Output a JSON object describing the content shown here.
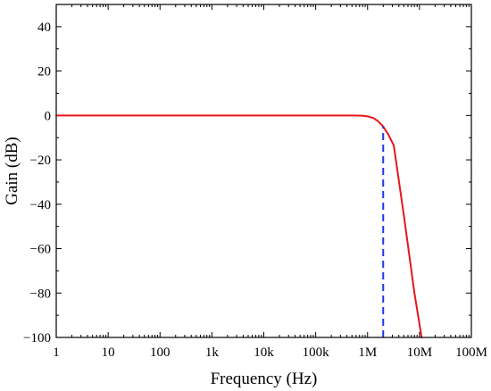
{
  "chart_data": {
    "type": "line",
    "xlabel": "Frequency (Hz)",
    "ylabel": "Gain (dB)",
    "x_scale": "log",
    "xlim": [
      1,
      100000000
    ],
    "ylim": [
      -100,
      50
    ],
    "x_ticks": [
      {
        "value": 1,
        "label": "1"
      },
      {
        "value": 10,
        "label": "10"
      },
      {
        "value": 100,
        "label": "100"
      },
      {
        "value": 1000,
        "label": "1k"
      },
      {
        "value": 10000,
        "label": "10k"
      },
      {
        "value": 100000,
        "label": "100k"
      },
      {
        "value": 1000000,
        "label": "1M"
      },
      {
        "value": 10000000,
        "label": "10M"
      },
      {
        "value": 100000000,
        "label": "100M"
      }
    ],
    "y_ticks": [
      {
        "value": 40,
        "label": "40"
      },
      {
        "value": 20,
        "label": "20"
      },
      {
        "value": 0,
        "label": "0"
      },
      {
        "value": -20,
        "label": "−20"
      },
      {
        "value": -40,
        "label": "−40"
      },
      {
        "value": -60,
        "label": "−60"
      },
      {
        "value": -80,
        "label": "−80"
      },
      {
        "value": -100,
        "label": "−100"
      }
    ],
    "grid": false,
    "series": [
      {
        "color": "#e8141b",
        "style": "solid",
        "x": [
          1,
          10,
          100,
          1000,
          10000,
          100000,
          500000,
          800000,
          1000000,
          1300000,
          1600000,
          2000000,
          2500000,
          3200000,
          5000000,
          8000000,
          11000000
        ],
        "y": [
          0,
          0,
          0,
          0,
          0,
          0,
          0,
          -0.1,
          -0.4,
          -1.2,
          -2.6,
          -5,
          -8.5,
          -13.5,
          -45,
          -80,
          -100
        ]
      }
    ],
    "markers": [
      {
        "type": "vline",
        "x": 2000000,
        "y_from": -100,
        "y_to": -5,
        "color": "#1f35e8",
        "style": "dashed"
      }
    ]
  }
}
